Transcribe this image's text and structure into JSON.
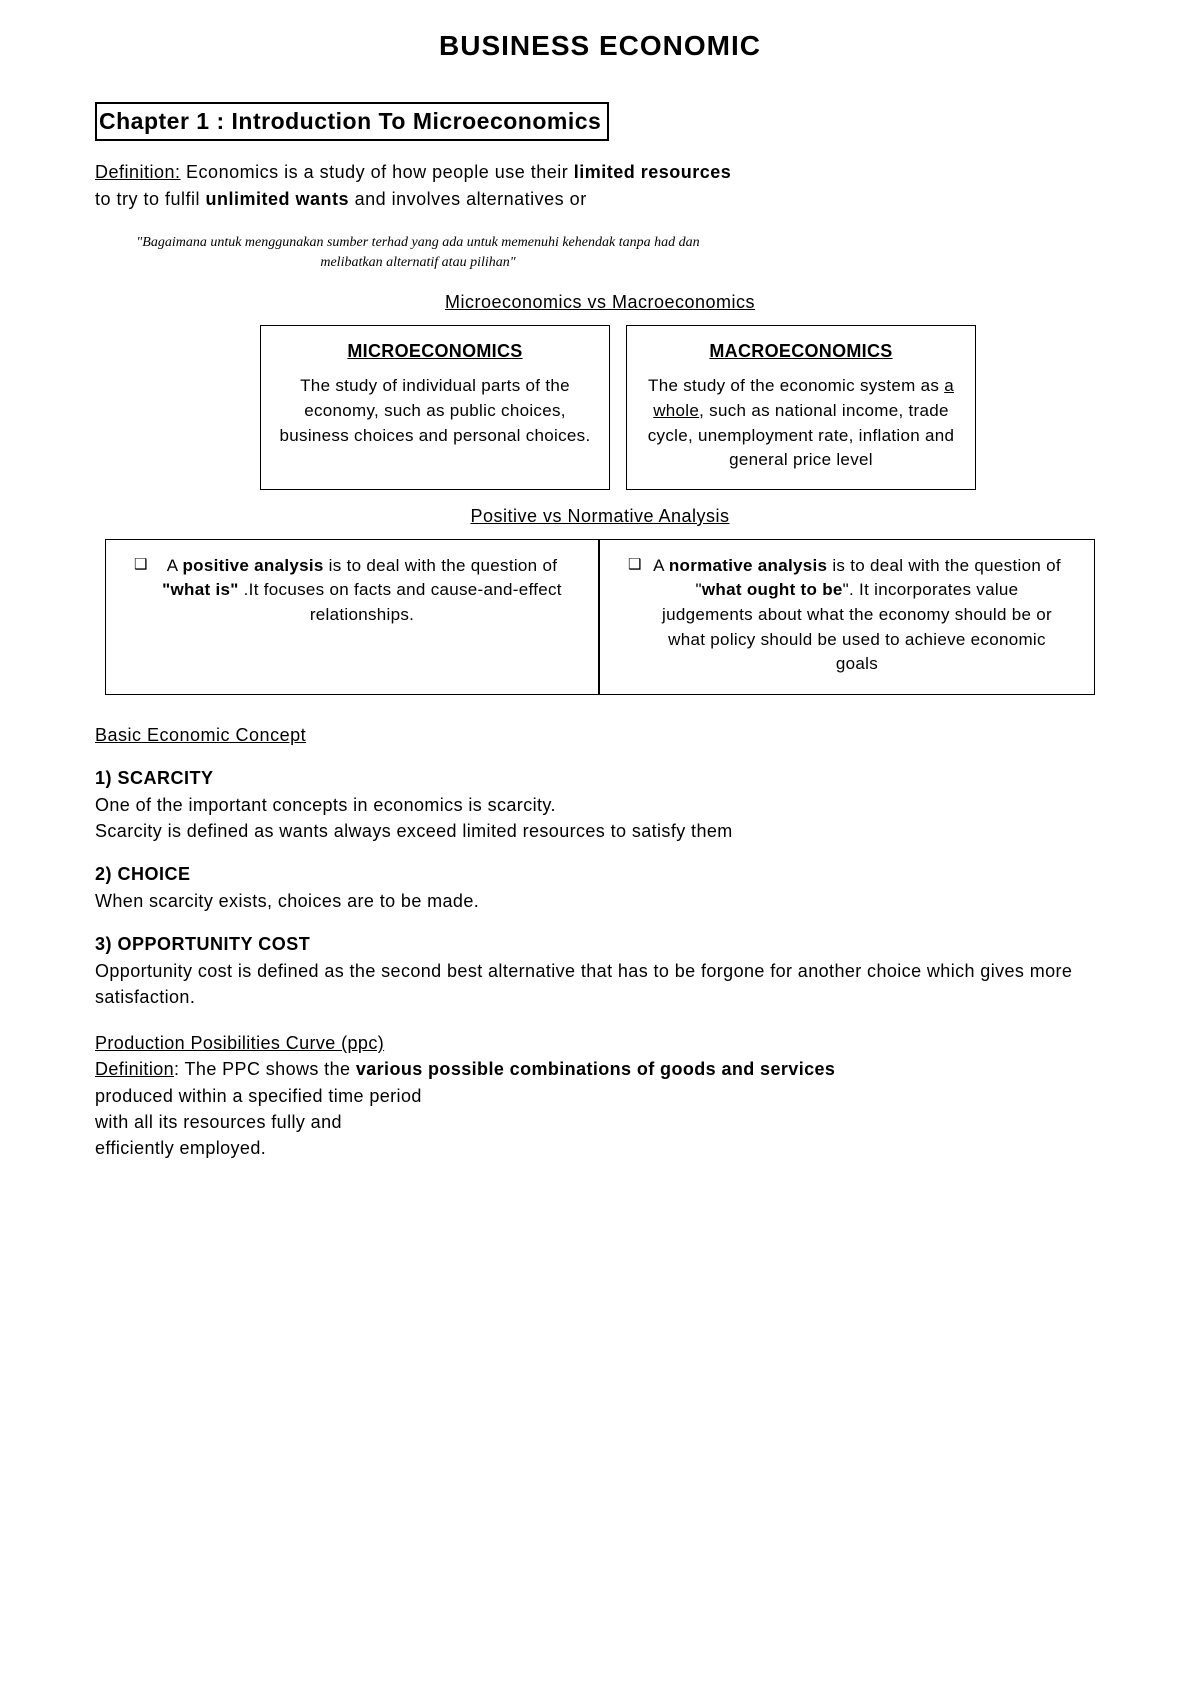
{
  "title": "BUSINESS ECONOMIC",
  "chapter": "Chapter 1 : Introduction To Microeconomics",
  "definition": {
    "label": "Definition:",
    "text_1": " Economics is a study of how people use their ",
    "bold_1": "limited resources",
    "text_2": " to try to fulfil ",
    "bold_2": "unlimited wants",
    "text_3": " and involves alternatives or"
  },
  "quote": "\"Bagaimana untuk menggunakan sumber terhad yang ada untuk memenuhi kehendak tanpa had dan melibatkan alternatif atau pilihan\"",
  "heading_micro_macro": "Microeconomics vs Macroeconomics",
  "micro": {
    "title": "MICROECONOMICS",
    "body": "The study of individual parts of the economy, such as public choices, business choices and personal choices."
  },
  "macro": {
    "title": "MACROECONOMICS",
    "pre": "The study of the economic system as ",
    "underlined": "a whole",
    "post": ", such as national income, trade cycle, unemployment rate, inflation and general price level"
  },
  "heading_pos_norm": "Positive vs Normative Analysis",
  "positive": {
    "pre": "A ",
    "bold_1": "positive analysis",
    "mid": " is to deal with the question of ",
    "bold_2": "\"what is\"",
    "post": " .It focuses on facts and cause-and-effect relationships."
  },
  "normative": {
    "pre": "A ",
    "bold_1": "normative analysis",
    "mid": " is to deal with the question of \"",
    "bold_2": "what ought to be",
    "post": "\". It incorporates value judgements about what the economy should be or what policy should be used to achieve economic goals"
  },
  "basic_concept_heading": "Basic Economic Concept",
  "concepts": {
    "scarcity": {
      "title": "1) SCARCITY",
      "line1": "One of the important concepts in economics is scarcity.",
      "line2": "Scarcity is defined as wants always exceed limited resources to satisfy them"
    },
    "choice": {
      "title": "2) CHOICE",
      "body": "When scarcity exists, choices are to be made."
    },
    "opportunity": {
      "title": "3) OPPORTUNITY COST",
      "body": "Opportunity cost is defined as the second best alternative that has to be forgone for another choice which gives more satisfaction."
    }
  },
  "ppc": {
    "heading": "Production Posibilities Curve (ppc)",
    "def_label": "Definition",
    "pre": ": The PPC shows the ",
    "bold": "various possible combinations of goods and services",
    "line2": "produced within a specified time period",
    "line3": "with all its resources fully and",
    "line4": "efficiently employed."
  }
}
